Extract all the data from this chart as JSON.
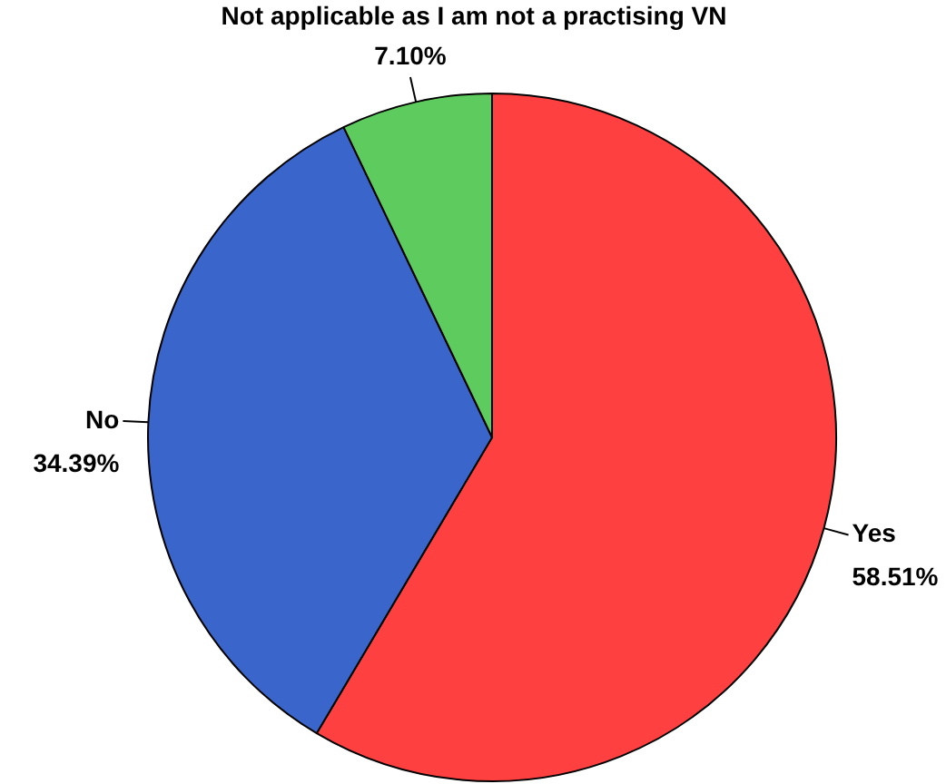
{
  "chart_data": {
    "type": "pie",
    "categories": [
      "Yes",
      "No",
      "Not applicable as I am not a practising VN"
    ],
    "values": [
      58.51,
      34.39,
      7.1
    ],
    "value_labels": [
      "58.51%",
      "34.39%",
      "7.10%"
    ],
    "colors": [
      "#ff4040",
      "#3a66cc",
      "#5ecb5e"
    ],
    "legend": false
  }
}
